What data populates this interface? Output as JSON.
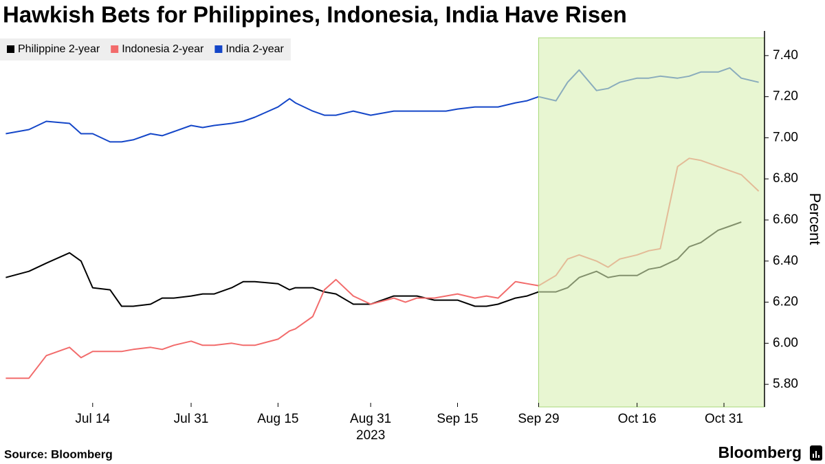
{
  "chart_data": {
    "type": "line",
    "title": "Hawkish Bets for Philippines, Indonesia, India Have Risen",
    "ylabel": "Percent",
    "xlabel": "2023",
    "source": "Source: Bloomberg",
    "branding": "Bloomberg",
    "x": [
      "2023-06-29",
      "2023-07-03",
      "2023-07-06",
      "2023-07-10",
      "2023-07-12",
      "2023-07-14",
      "2023-07-17",
      "2023-07-19",
      "2023-07-21",
      "2023-07-24",
      "2023-07-26",
      "2023-07-28",
      "2023-07-31",
      "2023-08-02",
      "2023-08-04",
      "2023-08-07",
      "2023-08-09",
      "2023-08-11",
      "2023-08-15",
      "2023-08-17",
      "2023-08-18",
      "2023-08-21",
      "2023-08-23",
      "2023-08-25",
      "2023-08-28",
      "2023-08-31",
      "2023-09-04",
      "2023-09-06",
      "2023-09-08",
      "2023-09-11",
      "2023-09-13",
      "2023-09-15",
      "2023-09-18",
      "2023-09-20",
      "2023-09-22",
      "2023-09-25",
      "2023-09-27",
      "2023-09-29",
      "2023-10-02",
      "2023-10-04",
      "2023-10-06",
      "2023-10-09",
      "2023-10-11",
      "2023-10-13",
      "2023-10-16",
      "2023-10-18",
      "2023-10-20",
      "2023-10-23",
      "2023-10-25",
      "2023-10-27",
      "2023-10-30",
      "2023-11-01",
      "2023-11-03",
      "2023-11-06"
    ],
    "series": [
      {
        "name": "Philippine 2-year",
        "color": "#000000",
        "values": [
          6.32,
          6.35,
          6.39,
          6.44,
          6.4,
          6.27,
          6.26,
          6.18,
          6.18,
          6.19,
          6.22,
          6.22,
          6.23,
          6.24,
          6.24,
          6.27,
          6.3,
          6.3,
          6.29,
          6.26,
          6.27,
          6.27,
          6.25,
          6.24,
          6.19,
          6.19,
          6.23,
          6.23,
          6.23,
          6.21,
          6.21,
          6.21,
          6.18,
          6.18,
          6.19,
          6.22,
          6.23,
          6.25,
          6.25,
          6.27,
          6.32,
          6.35,
          6.32,
          6.33,
          6.33,
          6.36,
          6.37,
          6.41,
          6.47,
          6.49,
          6.55,
          6.57,
          6.59,
          null
        ]
      },
      {
        "name": "Indonesia 2-year",
        "color": "#f26b6b",
        "values": [
          5.83,
          5.83,
          5.94,
          5.98,
          5.93,
          5.96,
          5.96,
          5.96,
          5.97,
          5.98,
          5.97,
          5.99,
          6.01,
          5.99,
          5.99,
          6.0,
          5.99,
          5.99,
          6.02,
          6.06,
          6.07,
          6.13,
          6.26,
          6.31,
          6.23,
          6.19,
          6.22,
          6.2,
          6.22,
          6.22,
          6.23,
          6.24,
          6.22,
          6.23,
          6.22,
          6.3,
          6.29,
          6.28,
          6.33,
          6.41,
          6.43,
          6.4,
          6.37,
          6.41,
          6.43,
          6.45,
          6.46,
          6.86,
          6.9,
          6.89,
          6.86,
          6.84,
          6.82,
          6.74
        ]
      },
      {
        "name": "India 2-year",
        "color": "#1446c8",
        "values": [
          7.02,
          7.04,
          7.08,
          7.07,
          7.02,
          7.02,
          6.98,
          6.98,
          6.99,
          7.02,
          7.01,
          7.03,
          7.06,
          7.05,
          7.06,
          7.07,
          7.08,
          7.1,
          7.15,
          7.19,
          7.17,
          7.13,
          7.11,
          7.11,
          7.13,
          7.11,
          7.13,
          7.13,
          7.13,
          7.13,
          7.13,
          7.14,
          7.15,
          7.15,
          7.15,
          7.17,
          7.18,
          7.2,
          7.18,
          7.27,
          7.33,
          7.23,
          7.24,
          7.27,
          7.29,
          7.29,
          7.3,
          7.29,
          7.3,
          7.32,
          7.32,
          7.34,
          7.29,
          7.27
        ]
      }
    ],
    "xlim": [
      "2023-06-28",
      "2023-11-07"
    ],
    "xticks": [
      {
        "value": "2023-07-14",
        "label": "Jul 14"
      },
      {
        "value": "2023-07-31",
        "label": "Jul 31"
      },
      {
        "value": "2023-08-15",
        "label": "Aug 15"
      },
      {
        "value": "2023-08-31",
        "label": "Aug 31"
      },
      {
        "value": "2023-09-15",
        "label": "Sep 15"
      },
      {
        "value": "2023-09-29",
        "label": "Sep 29"
      },
      {
        "value": "2023-10-16",
        "label": "Oct 16"
      },
      {
        "value": "2023-10-31",
        "label": "Oct 31"
      }
    ],
    "ylim": [
      5.69,
      7.52
    ],
    "yticks": [
      {
        "value": 5.8,
        "label": "5.80"
      },
      {
        "value": 6.0,
        "label": "6.00"
      },
      {
        "value": 6.2,
        "label": "6.20"
      },
      {
        "value": 6.4,
        "label": "6.40"
      },
      {
        "value": 6.6,
        "label": "6.60"
      },
      {
        "value": 6.8,
        "label": "6.80"
      },
      {
        "value": 7.0,
        "label": "7.00"
      },
      {
        "value": 7.2,
        "label": "7.20"
      },
      {
        "value": 7.4,
        "label": "7.40"
      }
    ],
    "highlight_from": "2023-09-29",
    "highlight_color": "#d8f0b4",
    "legend": "top-left"
  }
}
